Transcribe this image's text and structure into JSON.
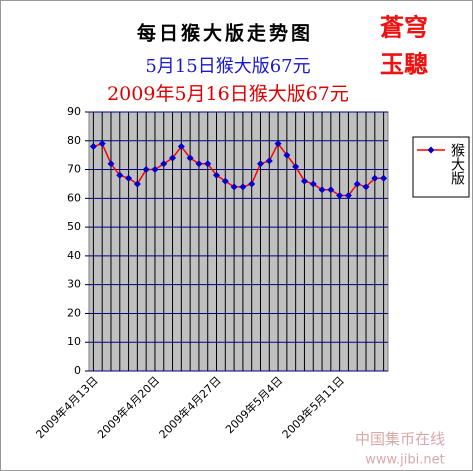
{
  "chart_data": {
    "type": "line",
    "title": "每日猴大版走势图",
    "subtitles": [
      "5月15日猴大版67元",
      "2009年5月16日猴大版67元"
    ],
    "stamp": [
      "蒼穹",
      "玉驄"
    ],
    "watermark": [
      "中国集币在线",
      "www.jibi.net"
    ],
    "categories": [
      "2009年4月13日",
      null,
      null,
      null,
      null,
      null,
      null,
      "2009年4月20日",
      null,
      null,
      null,
      null,
      null,
      null,
      "2009年4月27日",
      null,
      null,
      null,
      null,
      null,
      null,
      "2009年5月4日",
      null,
      null,
      null,
      null,
      null,
      null,
      "2009年5月11日",
      null,
      null,
      null,
      null,
      null
    ],
    "series": [
      {
        "name": "猴大版",
        "color": "#ff0000",
        "marker_color": "#0000cc",
        "values": [
          78,
          79,
          72,
          68,
          67,
          65,
          70,
          70,
          72,
          74,
          78,
          74,
          72,
          72,
          68,
          66,
          64,
          64,
          65,
          72,
          73,
          79,
          75,
          71,
          66,
          65,
          63,
          63,
          61,
          61,
          65,
          64,
          67,
          67
        ]
      }
    ],
    "ylim": [
      0,
      90
    ],
    "yticks": [
      0,
      10,
      20,
      30,
      40,
      50,
      60,
      70,
      80,
      90
    ],
    "grid": true,
    "plot_background": "#c0c0c0",
    "legend": "right"
  }
}
